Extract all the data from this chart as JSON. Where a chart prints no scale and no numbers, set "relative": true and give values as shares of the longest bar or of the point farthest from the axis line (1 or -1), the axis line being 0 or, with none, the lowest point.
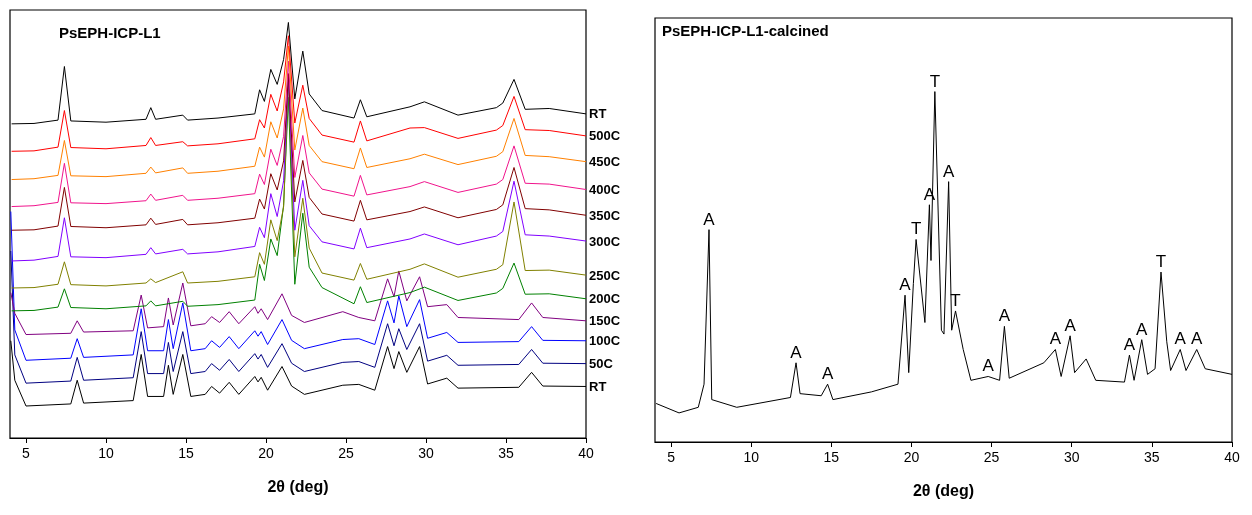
{
  "chart_data": [
    {
      "type": "line",
      "title": "PsEPH-ICP-L1",
      "xlabel": "2θ (deg)",
      "relative": true,
      "legend": false,
      "tick_labels": "x",
      "xlim": [
        4,
        40
      ],
      "xticks": [
        5,
        10,
        15,
        20,
        25,
        30,
        35,
        40
      ],
      "series": [
        {
          "name": "RT",
          "color": "#000000",
          "x": [
            4.1,
            5.5,
            7.0,
            7.4,
            7.8,
            10,
            12.5,
            12.8,
            13.1,
            14.8,
            15.1,
            17,
            19.3,
            19.6,
            19.9,
            20.3,
            20.7,
            21.1,
            21.4,
            21.8,
            22.3,
            22.7,
            23.5,
            25.5,
            25.9,
            26.3,
            29,
            29.9,
            32,
            34.4,
            34.8,
            35.5,
            36.2,
            37.7,
            40
          ],
          "values": [
            0.756,
            0.757,
            0.765,
            0.894,
            0.763,
            0.76,
            0.767,
            0.795,
            0.767,
            0.777,
            0.765,
            0.77,
            0.78,
            0.838,
            0.81,
            0.887,
            0.851,
            0.911,
            1.0,
            0.816,
            0.931,
            0.828,
            0.788,
            0.77,
            0.814,
            0.773,
            0.797,
            0.809,
            0.777,
            0.795,
            0.806,
            0.863,
            0.791,
            0.793,
            0.78
          ]
        },
        {
          "name": "500C",
          "color": "#ff0000",
          "x": [
            4.1,
            5.5,
            7.0,
            7.4,
            7.8,
            10,
            12.5,
            12.8,
            13.1,
            14.8,
            15.1,
            17,
            19.3,
            19.6,
            19.9,
            20.3,
            20.7,
            21.1,
            21.4,
            21.8,
            22.3,
            22.7,
            23.5,
            25.5,
            25.9,
            26.3,
            29,
            29.9,
            32,
            34.4,
            34.8,
            35.5,
            36.2,
            37.7,
            40
          ],
          "values": [
            0.69,
            0.691,
            0.7,
            0.788,
            0.699,
            0.696,
            0.704,
            0.723,
            0.704,
            0.713,
            0.703,
            0.708,
            0.72,
            0.766,
            0.746,
            0.827,
            0.787,
            0.857,
            0.968,
            0.758,
            0.849,
            0.769,
            0.729,
            0.712,
            0.763,
            0.715,
            0.746,
            0.747,
            0.721,
            0.741,
            0.752,
            0.822,
            0.742,
            0.74,
            0.727
          ]
        },
        {
          "name": "450C",
          "color": "#ff8000",
          "x": [
            4.1,
            5.5,
            7.0,
            7.4,
            7.8,
            10,
            12.5,
            12.8,
            13.1,
            14.8,
            15.1,
            17,
            19.3,
            19.6,
            19.9,
            20.3,
            20.7,
            21.1,
            21.4,
            21.8,
            22.3,
            22.7,
            23.5,
            25.5,
            25.9,
            26.3,
            29,
            29.9,
            32,
            34.4,
            34.8,
            35.5,
            36.2,
            37.7,
            40
          ],
          "values": [
            0.622,
            0.624,
            0.632,
            0.716,
            0.631,
            0.629,
            0.637,
            0.652,
            0.638,
            0.65,
            0.637,
            0.642,
            0.654,
            0.7,
            0.676,
            0.761,
            0.722,
            0.792,
            0.943,
            0.693,
            0.794,
            0.704,
            0.665,
            0.648,
            0.698,
            0.651,
            0.672,
            0.683,
            0.658,
            0.678,
            0.689,
            0.769,
            0.68,
            0.677,
            0.665
          ]
        },
        {
          "name": "400C",
          "color": "#f0148c",
          "x": [
            4.1,
            5.5,
            7.0,
            7.4,
            7.8,
            10,
            12.5,
            12.8,
            13.1,
            14.8,
            15.1,
            17,
            19.3,
            19.6,
            19.9,
            20.3,
            20.7,
            21.1,
            21.4,
            21.8,
            22.3,
            22.7,
            23.5,
            25.5,
            25.9,
            26.3,
            29,
            29.9,
            32,
            34.4,
            34.8,
            35.5,
            36.2,
            37.7,
            40
          ],
          "values": [
            0.557,
            0.559,
            0.567,
            0.661,
            0.566,
            0.564,
            0.571,
            0.587,
            0.572,
            0.584,
            0.572,
            0.577,
            0.588,
            0.635,
            0.61,
            0.695,
            0.656,
            0.726,
            0.907,
            0.627,
            0.728,
            0.638,
            0.599,
            0.582,
            0.632,
            0.585,
            0.605,
            0.617,
            0.591,
            0.611,
            0.622,
            0.703,
            0.613,
            0.611,
            0.598
          ]
        },
        {
          "name": "350C",
          "color": "#800000",
          "x": [
            4.1,
            5.5,
            7.0,
            7.4,
            7.8,
            10,
            12.5,
            12.8,
            13.1,
            14.8,
            15.1,
            17,
            19.3,
            19.6,
            19.9,
            20.3,
            20.7,
            21.1,
            21.4,
            21.8,
            22.3,
            22.7,
            23.5,
            25.5,
            25.9,
            26.3,
            29,
            29.9,
            32,
            34.4,
            34.8,
            35.5,
            36.2,
            37.7,
            40
          ],
          "values": [
            0.5,
            0.501,
            0.51,
            0.603,
            0.509,
            0.506,
            0.513,
            0.529,
            0.514,
            0.526,
            0.513,
            0.518,
            0.529,
            0.575,
            0.551,
            0.636,
            0.597,
            0.667,
            0.877,
            0.568,
            0.668,
            0.579,
            0.539,
            0.522,
            0.572,
            0.525,
            0.545,
            0.556,
            0.53,
            0.55,
            0.561,
            0.651,
            0.552,
            0.549,
            0.536
          ]
        },
        {
          "name": "300C",
          "color": "#8000ff",
          "x": [
            4.1,
            5.5,
            7.0,
            7.4,
            7.8,
            10,
            12.5,
            12.8,
            13.1,
            14.8,
            15.1,
            17,
            19.3,
            19.6,
            19.9,
            20.3,
            20.7,
            21.1,
            21.4,
            21.8,
            22.3,
            22.7,
            23.5,
            25.5,
            25.9,
            26.3,
            29,
            29.9,
            32,
            34.4,
            34.8,
            35.5,
            36.2,
            37.7,
            40
          ],
          "values": [
            0.426,
            0.428,
            0.437,
            0.53,
            0.436,
            0.434,
            0.442,
            0.458,
            0.443,
            0.454,
            0.443,
            0.448,
            0.461,
            0.507,
            0.482,
            0.588,
            0.533,
            0.619,
            0.869,
            0.5,
            0.62,
            0.511,
            0.472,
            0.455,
            0.505,
            0.458,
            0.479,
            0.491,
            0.465,
            0.486,
            0.497,
            0.618,
            0.489,
            0.486,
            0.474
          ]
        },
        {
          "name": "250C",
          "color": "#808000",
          "x": [
            4.1,
            5.5,
            7.0,
            7.4,
            7.8,
            10,
            12.5,
            12.8,
            13.1,
            14.8,
            15.1,
            17,
            19.3,
            19.6,
            19.9,
            20.3,
            20.7,
            21.1,
            21.4,
            21.8,
            22.3,
            22.7,
            23.5,
            25.5,
            25.9,
            26.3,
            29,
            29.9,
            32,
            34.4,
            34.8,
            35.5,
            36.2,
            37.7,
            40
          ],
          "values": [
            0.361,
            0.362,
            0.37,
            0.424,
            0.369,
            0.366,
            0.373,
            0.383,
            0.374,
            0.4,
            0.373,
            0.377,
            0.388,
            0.446,
            0.418,
            0.525,
            0.475,
            0.556,
            0.856,
            0.436,
            0.577,
            0.457,
            0.397,
            0.38,
            0.42,
            0.382,
            0.406,
            0.419,
            0.387,
            0.406,
            0.417,
            0.568,
            0.403,
            0.404,
            0.392
          ]
        },
        {
          "name": "200C",
          "color": "#008000",
          "x": [
            4.1,
            5.5,
            7.0,
            7.4,
            7.8,
            10,
            12.5,
            12.8,
            13.1,
            14.8,
            15.1,
            17,
            19.3,
            19.6,
            19.9,
            20.3,
            20.7,
            21.1,
            21.4,
            21.8,
            22.3,
            22.7,
            23.5,
            25.5,
            25.9,
            26.3,
            29,
            29.9,
            32,
            34.4,
            34.8,
            35.5,
            36.2,
            37.7,
            40
          ],
          "values": [
            0.306,
            0.307,
            0.315,
            0.359,
            0.314,
            0.311,
            0.318,
            0.33,
            0.318,
            0.329,
            0.317,
            0.321,
            0.332,
            0.418,
            0.379,
            0.479,
            0.439,
            0.56,
            0.82,
            0.37,
            0.541,
            0.411,
            0.362,
            0.323,
            0.364,
            0.326,
            0.35,
            0.363,
            0.331,
            0.349,
            0.36,
            0.421,
            0.346,
            0.347,
            0.335
          ]
        },
        {
          "name": "150C",
          "color": "#800080",
          "x": [
            4.05,
            4.3,
            5,
            7.8,
            8.2,
            8.6,
            11.7,
            12.2,
            12.6,
            13.6,
            13.9,
            14.2,
            14.8,
            15.3,
            16.2,
            16.6,
            17.1,
            17.7,
            18.3,
            19.3,
            19.5,
            19.7,
            20.1,
            21.0,
            21.6,
            22.4,
            24.8,
            25.8,
            26.8,
            27.6,
            28.0,
            28.3,
            28.8,
            29.6,
            30.1,
            31.3,
            32,
            35.8,
            36.6,
            37.3,
            40
          ],
          "values": [
            0.35,
            0.3,
            0.249,
            0.252,
            0.282,
            0.255,
            0.258,
            0.344,
            0.265,
            0.268,
            0.337,
            0.272,
            0.373,
            0.27,
            0.275,
            0.292,
            0.278,
            0.304,
            0.275,
            0.316,
            0.3,
            0.311,
            0.285,
            0.347,
            0.295,
            0.278,
            0.304,
            0.29,
            0.282,
            0.383,
            0.34,
            0.402,
            0.33,
            0.388,
            0.316,
            0.321,
            0.29,
            0.285,
            0.325,
            0.29,
            0.282
          ]
        },
        {
          "name": "100C",
          "color": "#0000ff",
          "x": [
            4.05,
            4.3,
            5,
            7.8,
            8.2,
            8.6,
            11.7,
            12.2,
            12.6,
            13.6,
            13.9,
            14.2,
            14.8,
            15.3,
            16.2,
            16.6,
            17.1,
            17.7,
            18.3,
            19.3,
            19.5,
            19.7,
            20.1,
            21.0,
            21.6,
            22.4,
            24.8,
            25.8,
            26.8,
            27.6,
            28.0,
            28.3,
            28.8,
            29.6,
            30.1,
            31.3,
            32,
            35.8,
            36.6,
            37.3,
            40
          ],
          "values": [
            0.545,
            0.26,
            0.187,
            0.192,
            0.239,
            0.194,
            0.2,
            0.311,
            0.21,
            0.21,
            0.285,
            0.215,
            0.325,
            0.21,
            0.215,
            0.234,
            0.218,
            0.244,
            0.215,
            0.258,
            0.245,
            0.256,
            0.225,
            0.285,
            0.235,
            0.215,
            0.237,
            0.239,
            0.225,
            0.33,
            0.277,
            0.342,
            0.268,
            0.333,
            0.24,
            0.254,
            0.23,
            0.232,
            0.268,
            0.235,
            0.234
          ]
        },
        {
          "name": "50C",
          "color": "#000080",
          "x": [
            4.05,
            4.3,
            5,
            7.8,
            8.2,
            8.6,
            11.7,
            12.2,
            12.6,
            13.6,
            13.9,
            14.2,
            14.8,
            15.3,
            16.2,
            16.6,
            17.1,
            17.7,
            18.3,
            19.3,
            19.5,
            19.7,
            20.1,
            21.0,
            21.6,
            22.4,
            24.8,
            25.8,
            26.8,
            27.6,
            28.0,
            28.3,
            28.8,
            29.6,
            30.1,
            31.3,
            32,
            35.8,
            36.6,
            37.3,
            40
          ],
          "values": [
            0.45,
            0.2,
            0.132,
            0.137,
            0.194,
            0.139,
            0.145,
            0.256,
            0.155,
            0.155,
            0.23,
            0.16,
            0.256,
            0.155,
            0.16,
            0.179,
            0.163,
            0.189,
            0.16,
            0.203,
            0.19,
            0.201,
            0.17,
            0.227,
            0.18,
            0.16,
            0.182,
            0.184,
            0.17,
            0.275,
            0.222,
            0.263,
            0.213,
            0.275,
            0.185,
            0.199,
            0.175,
            0.177,
            0.213,
            0.18,
            0.179
          ]
        },
        {
          "name": "RT",
          "color": "#000000",
          "x": [
            4.05,
            4.3,
            5,
            7.8,
            8.2,
            8.6,
            11.7,
            12.2,
            12.6,
            13.6,
            13.9,
            14.2,
            14.8,
            15.3,
            16.2,
            16.6,
            17.1,
            17.7,
            18.3,
            19.3,
            19.5,
            19.7,
            20.1,
            21.0,
            21.6,
            22.4,
            24.8,
            25.8,
            26.8,
            27.6,
            28.0,
            28.3,
            28.8,
            29.6,
            30.1,
            31.3,
            32,
            35.8,
            36.6,
            37.3,
            40
          ],
          "values": [
            0.234,
            0.139,
            0.077,
            0.082,
            0.139,
            0.084,
            0.09,
            0.201,
            0.1,
            0.1,
            0.175,
            0.105,
            0.201,
            0.1,
            0.105,
            0.124,
            0.108,
            0.134,
            0.105,
            0.148,
            0.135,
            0.146,
            0.115,
            0.172,
            0.125,
            0.105,
            0.127,
            0.129,
            0.115,
            0.22,
            0.167,
            0.208,
            0.158,
            0.22,
            0.13,
            0.144,
            0.12,
            0.122,
            0.158,
            0.125,
            0.124
          ]
        }
      ]
    },
    {
      "type": "line",
      "title": "PsEPH-ICP-L1-calcined",
      "xlabel": "2θ (deg)",
      "relative": true,
      "legend": false,
      "tick_labels": "x",
      "xlim": [
        4,
        40
      ],
      "xticks": [
        5,
        10,
        15,
        20,
        25,
        30,
        35,
        40
      ],
      "series": [
        {
          "color": "#000000",
          "x": [
            4.07,
            5.5,
            6.7,
            7.06,
            7.37,
            7.54,
            9.1,
            12.45,
            12.8,
            13.05,
            14.37,
            14.77,
            15.1,
            17.5,
            19.16,
            19.6,
            19.83,
            20.12,
            20.29,
            20.84,
            21.12,
            21.22,
            21.46,
            21.87,
            22.03,
            22.32,
            22.51,
            22.75,
            23.23,
            23.71,
            24.79,
            25.5,
            25.8,
            26.1,
            28.26,
            28.98,
            29.34,
            29.9,
            30.18,
            30.9,
            31.5,
            33.29,
            33.6,
            33.89,
            34.37,
            34.73,
            35.2,
            35.57,
            35.93,
            36.17,
            36.77,
            37.13,
            37.8,
            38.33,
            40
          ],
          "values": [
            0.11,
            0.083,
            0.099,
            0.165,
            0.606,
            0.121,
            0.099,
            0.127,
            0.226,
            0.138,
            0.132,
            0.165,
            0.121,
            0.143,
            0.165,
            0.419,
            0.198,
            0.452,
            0.578,
            0.341,
            0.677,
            0.518,
            1.0,
            0.319,
            0.308,
            0.743,
            0.319,
            0.374,
            0.264,
            0.176,
            0.187,
            0.176,
            0.33,
            0.182,
            0.226,
            0.264,
            0.187,
            0.303,
            0.198,
            0.237,
            0.176,
            0.171,
            0.248,
            0.176,
            0.292,
            0.193,
            0.209,
            0.485,
            0.286,
            0.204,
            0.264,
            0.204,
            0.264,
            0.209,
            0.193
          ]
        }
      ],
      "annotations": [
        {
          "text": "A",
          "x": 7.37,
          "y": 0.606
        },
        {
          "text": "A",
          "x": 12.8,
          "y": 0.226
        },
        {
          "text": "A",
          "x": 14.77,
          "y": 0.165
        },
        {
          "text": "A",
          "x": 19.6,
          "y": 0.419
        },
        {
          "text": "T",
          "x": 20.29,
          "y": 0.578
        },
        {
          "text": "A",
          "x": 21.12,
          "y": 0.677
        },
        {
          "text": "T",
          "x": 21.46,
          "y": 1.0
        },
        {
          "text": "A",
          "x": 22.32,
          "y": 0.743
        },
        {
          "text": "T",
          "x": 22.75,
          "y": 0.374
        },
        {
          "text": "A",
          "x": 24.79,
          "y": 0.187
        },
        {
          "text": "A",
          "x": 25.8,
          "y": 0.33
        },
        {
          "text": "A",
          "x": 28.98,
          "y": 0.264
        },
        {
          "text": "A",
          "x": 29.9,
          "y": 0.303
        },
        {
          "text": "A",
          "x": 33.6,
          "y": 0.248
        },
        {
          "text": "A",
          "x": 34.37,
          "y": 0.292
        },
        {
          "text": "T",
          "x": 35.57,
          "y": 0.485
        },
        {
          "text": "A",
          "x": 36.77,
          "y": 0.264
        },
        {
          "text": "A",
          "x": 37.8,
          "y": 0.264
        }
      ]
    }
  ]
}
